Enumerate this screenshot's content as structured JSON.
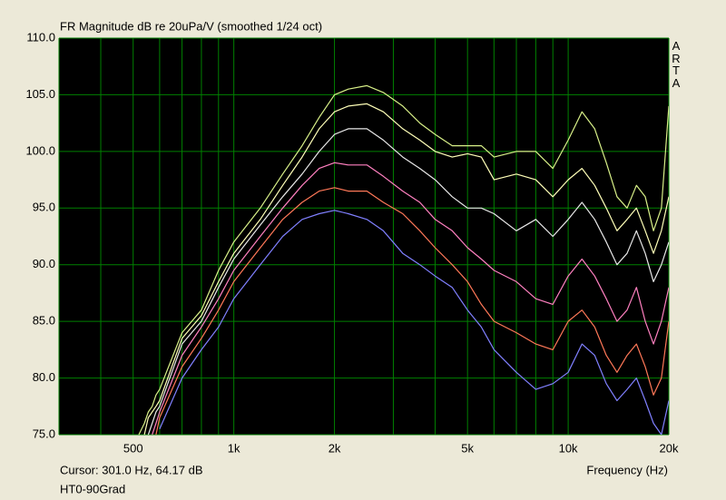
{
  "chart_data": {
    "type": "line",
    "title": "FR Magnitude dB re 20uPa/V (smoothed 1/24 oct)",
    "watermark": "ARTA",
    "xlabel": "Frequency (Hz)",
    "cursor": "Cursor: 301.0 Hz, 64.17 dB",
    "footer": "HT0-90Grad",
    "xscale": "log",
    "grid": true,
    "xlim": [
      300,
      20000
    ],
    "ylim": [
      75,
      110
    ],
    "yticks": [
      {
        "value": 75,
        "label": "75.0"
      },
      {
        "value": 80,
        "label": "80.0"
      },
      {
        "value": 85,
        "label": "85.0"
      },
      {
        "value": 90,
        "label": "90.0"
      },
      {
        "value": 95,
        "label": "95.0"
      },
      {
        "value": 100,
        "label": "100.0"
      },
      {
        "value": 105,
        "label": "105.0"
      },
      {
        "value": 110,
        "label": "110.0"
      }
    ],
    "xticks": [
      500,
      {
        "value": 1000,
        "label": "1k"
      },
      {
        "value": 2000,
        "label": "2k"
      },
      {
        "value": 5000,
        "label": "5k"
      },
      {
        "value": 10000,
        "label": "10k"
      },
      {
        "value": 20000,
        "label": "20k"
      }
    ],
    "xgrid": [
      300,
      400,
      500,
      600,
      700,
      800,
      900,
      1000,
      2000,
      3000,
      4000,
      5000,
      6000,
      7000,
      8000,
      9000,
      10000,
      20000
    ],
    "x": [
      520,
      540,
      555,
      570,
      585,
      600,
      700,
      800,
      900,
      1000,
      1200,
      1400,
      1600,
      1800,
      2000,
      2200,
      2500,
      2800,
      3200,
      3600,
      4000,
      4500,
      5000,
      5500,
      6000,
      7000,
      8000,
      9000,
      10000,
      11000,
      12000,
      13000,
      14000,
      15000,
      16000,
      17000,
      18000,
      19000,
      20000
    ],
    "series": [
      {
        "color": "#d8f088",
        "values": [
          75,
          76,
          77,
          77.5,
          78.5,
          79,
          84,
          86,
          89.5,
          92,
          95,
          98,
          100.5,
          103,
          105,
          105.5,
          105.8,
          105.2,
          104,
          102.5,
          101.5,
          100.5,
          100.5,
          100.5,
          99.5,
          100,
          100,
          98.5,
          101,
          103.5,
          102,
          99,
          96,
          95,
          97,
          96,
          93,
          95,
          104
        ]
      },
      {
        "color": "#ffffb8",
        "values": [
          null,
          75,
          76.5,
          77,
          77.5,
          78,
          83.5,
          85.5,
          88.5,
          91,
          94,
          97,
          99.5,
          102,
          103.5,
          104,
          104.2,
          103.5,
          102,
          101,
          100,
          99.5,
          99.8,
          99.5,
          97.5,
          98,
          97.5,
          96,
          97.5,
          98.5,
          97,
          95,
          93,
          94,
          95,
          93,
          91,
          93,
          96
        ]
      },
      {
        "color": "#e8e8e8",
        "values": [
          null,
          null,
          75,
          76,
          77,
          77.5,
          83,
          85,
          88,
          90.5,
          93.5,
          96,
          98,
          100,
          101.5,
          102,
          102,
          101,
          99.5,
          98.5,
          97.5,
          96,
          95,
          95,
          94.5,
          93,
          94,
          92.5,
          94,
          95.5,
          94,
          92,
          90,
          91,
          93,
          91,
          88.5,
          90,
          92
        ]
      },
      {
        "color": "#ff80c0",
        "values": [
          null,
          null,
          null,
          75,
          76,
          77,
          82,
          84.5,
          87,
          89.5,
          92.5,
          95,
          97,
          98.5,
          99,
          98.8,
          98.8,
          97.8,
          96.5,
          95.5,
          94,
          93,
          91.5,
          90.5,
          89.5,
          88.5,
          87,
          86.5,
          89,
          90.5,
          89,
          87,
          85,
          86,
          88,
          85,
          83,
          85,
          88
        ]
      },
      {
        "color": "#ff7858",
        "values": [
          null,
          null,
          null,
          null,
          75,
          76.5,
          81,
          83.5,
          86,
          88.5,
          91.5,
          94,
          95.5,
          96.5,
          96.8,
          96.5,
          96.5,
          95.5,
          94.5,
          93,
          91.5,
          90,
          88.5,
          86.5,
          85,
          84,
          83,
          82.5,
          85,
          86,
          84.5,
          82,
          80.5,
          82,
          83,
          81,
          78.5,
          80,
          85
        ]
      },
      {
        "color": "#8080ff",
        "values": [
          null,
          null,
          null,
          null,
          null,
          75.5,
          80,
          82.5,
          84.5,
          87,
          90,
          92.5,
          94,
          94.5,
          94.8,
          94.5,
          94,
          93,
          91,
          90,
          89,
          88,
          86,
          84.5,
          82.5,
          80.5,
          79,
          79.5,
          80.5,
          83,
          82,
          79.5,
          78,
          79,
          80,
          78,
          76,
          75,
          78
        ]
      }
    ]
  }
}
